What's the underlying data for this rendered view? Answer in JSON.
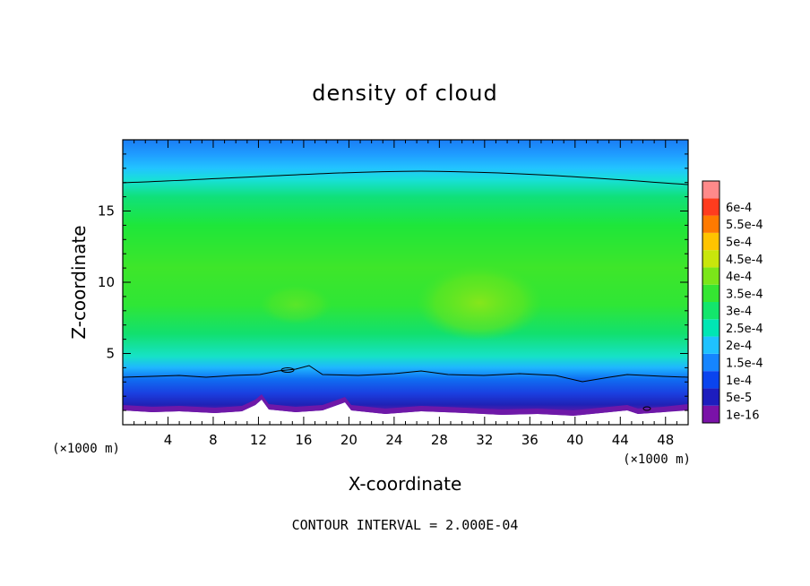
{
  "chart_data": {
    "type": "heatmap",
    "title": "density of cloud",
    "xlabel": "X-coordinate",
    "ylabel": "Z-coordinate",
    "x_unit": "(×1000 m)",
    "y_unit": "(×1000 m)",
    "xlim": [
      0,
      50
    ],
    "ylim": [
      0,
      20
    ],
    "x_ticks": [
      4,
      8,
      12,
      16,
      20,
      24,
      28,
      32,
      36,
      40,
      44,
      48
    ],
    "y_ticks": [
      5,
      10,
      15
    ],
    "colorbar": {
      "levels": [
        "1e-16",
        "5e-5",
        "1e-4",
        "1.5e-4",
        "2e-4",
        "2.5e-4",
        "3e-4",
        "3.5e-4",
        "4e-4",
        "4.5e-4",
        "5e-4",
        "5.5e-4",
        "6e-4"
      ],
      "colors": [
        "#7a12a8",
        "#1d1dbe",
        "#0a44ee",
        "#1585ff",
        "#1fc2ff",
        "#00e6b4",
        "#13e66c",
        "#35e632",
        "#7be619",
        "#c8e60c",
        "#ffc400",
        "#ff7a00",
        "#ff3c1e",
        "#ff8a8a"
      ]
    },
    "contour_lines": [
      {
        "level": "2e-4",
        "z": 17.0
      },
      {
        "level": "2e-4",
        "z": 3.4
      }
    ],
    "footer": "CONTOUR INTERVAL = 2.000E-04"
  }
}
